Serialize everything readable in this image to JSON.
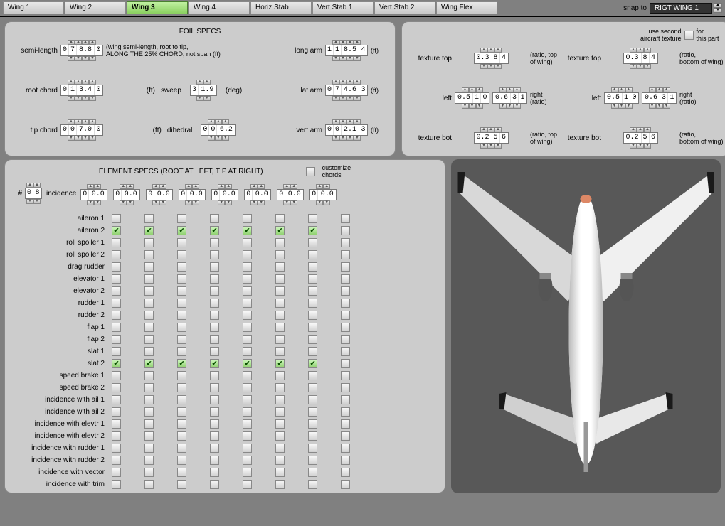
{
  "tabs": [
    "Wing 1",
    "Wing 2",
    "Wing 3",
    "Wing 4",
    "Horiz Stab",
    "Vert Stab 1",
    "Vert Stab 2",
    "Wing Flex"
  ],
  "active_tab": 2,
  "snap_label": "snap to",
  "snap_value": "RIGT WING 1",
  "foil_title": "FOIL SPECS",
  "foil": {
    "semi_length": {
      "label": "semi-length",
      "value": "0 7 8.8 0",
      "unit": "(wing semi-length, root to tip,\nALONG THE 25% CHORD, not span (ft)"
    },
    "root_chord": {
      "label": "root chord",
      "value": "0 1 3.4 0",
      "unit": "(ft)"
    },
    "tip_chord": {
      "label": "tip chord",
      "value": "0 0 7.0 0",
      "unit": "(ft)"
    },
    "sweep": {
      "label": "sweep",
      "value": "3 1.9",
      "unit": "(deg)"
    },
    "dihedral": {
      "label": "dihedral",
      "value": "0 0 6.2",
      "unit": ""
    },
    "long_arm": {
      "label": "long arm",
      "value": "1 1 8.5 4",
      "unit": "(ft)"
    },
    "lat_arm": {
      "label": "lat arm",
      "value": "0 7 4.6 3",
      "unit": "(ft)"
    },
    "vert_arm": {
      "label": "vert arm",
      "value": "0 0 2.1 3",
      "unit": "(ft)"
    }
  },
  "tex_header": {
    "use_second": "use second\naircraft texture",
    "for_part": "for\nthis part"
  },
  "tex": {
    "top_l": {
      "label": "texture top",
      "value": "0.3 8 4",
      "unit": "(ratio, top\nof wing)"
    },
    "top_r": {
      "label": "texture top",
      "value": "0.3 8 4",
      "unit": "(ratio,\nbottom of wing)"
    },
    "left_l": {
      "label": "left",
      "value": "0.5 1 0"
    },
    "right_l": {
      "label": "right\n(ratio)",
      "value": "0.6 3 1"
    },
    "left_r": {
      "label": "left",
      "value": "0.5 1 0"
    },
    "right_r": {
      "label": "right\n(ratio)",
      "value": "0.6 3 1"
    },
    "bot_l": {
      "label": "texture bot",
      "value": "0.2 5 6",
      "unit": "(ratio, top\nof wing)"
    },
    "bot_r": {
      "label": "texture bot",
      "value": "0.2 5 6",
      "unit": "(ratio,\nbottom of wing)"
    }
  },
  "elem_title": "ELEMENT SPECS  (ROOT AT LEFT, TIP AT RIGHT)",
  "customize": "customize\nchords",
  "count_label": "#",
  "count_value": "0 8",
  "incidence_label": "incidence",
  "incidence_values": [
    "0 0.0",
    "0 0.0",
    "0 0.0",
    "0 0.0",
    "0 0.0",
    "0 0.0",
    "0 0.0",
    "0 0.0"
  ],
  "elem_rows": [
    {
      "label": "aileron 1",
      "checks": [
        0,
        0,
        0,
        0,
        0,
        0,
        0,
        0
      ]
    },
    {
      "label": "aileron 2",
      "checks": [
        1,
        1,
        1,
        1,
        1,
        1,
        1,
        0
      ]
    },
    {
      "label": "roll spoiler 1",
      "checks": [
        0,
        0,
        0,
        0,
        0,
        0,
        0,
        0
      ]
    },
    {
      "label": "roll spoiler 2",
      "checks": [
        0,
        0,
        0,
        0,
        0,
        0,
        0,
        0
      ]
    },
    {
      "label": "drag rudder",
      "checks": [
        0,
        0,
        0,
        0,
        0,
        0,
        0,
        0
      ]
    },
    {
      "label": "elevator 1",
      "checks": [
        0,
        0,
        0,
        0,
        0,
        0,
        0,
        0
      ]
    },
    {
      "label": "elevator 2",
      "checks": [
        0,
        0,
        0,
        0,
        0,
        0,
        0,
        0
      ]
    },
    {
      "label": "rudder 1",
      "checks": [
        0,
        0,
        0,
        0,
        0,
        0,
        0,
        0
      ]
    },
    {
      "label": "rudder 2",
      "checks": [
        0,
        0,
        0,
        0,
        0,
        0,
        0,
        0
      ]
    },
    {
      "label": "flap 1",
      "checks": [
        0,
        0,
        0,
        0,
        0,
        0,
        0,
        0
      ]
    },
    {
      "label": "flap 2",
      "checks": [
        0,
        0,
        0,
        0,
        0,
        0,
        0,
        0
      ]
    },
    {
      "label": "slat 1",
      "checks": [
        0,
        0,
        0,
        0,
        0,
        0,
        0,
        0
      ]
    },
    {
      "label": "slat 2",
      "checks": [
        1,
        1,
        1,
        1,
        1,
        1,
        1,
        0
      ]
    },
    {
      "label": "speed brake 1",
      "checks": [
        0,
        0,
        0,
        0,
        0,
        0,
        0,
        0
      ]
    },
    {
      "label": "speed brake 2",
      "checks": [
        0,
        0,
        0,
        0,
        0,
        0,
        0,
        0
      ]
    },
    {
      "label": "incidence with ail 1",
      "checks": [
        0,
        0,
        0,
        0,
        0,
        0,
        0,
        0
      ]
    },
    {
      "label": "incidence with ail 2",
      "checks": [
        0,
        0,
        0,
        0,
        0,
        0,
        0,
        0
      ]
    },
    {
      "label": "incidence with elevtr 1",
      "checks": [
        0,
        0,
        0,
        0,
        0,
        0,
        0,
        0
      ]
    },
    {
      "label": "incidence with elevtr 2",
      "checks": [
        0,
        0,
        0,
        0,
        0,
        0,
        0,
        0
      ]
    },
    {
      "label": "incidence with rudder 1",
      "checks": [
        0,
        0,
        0,
        0,
        0,
        0,
        0,
        0
      ]
    },
    {
      "label": "incidence with rudder 2",
      "checks": [
        0,
        0,
        0,
        0,
        0,
        0,
        0,
        0
      ]
    },
    {
      "label": "incidence with vector",
      "checks": [
        0,
        0,
        0,
        0,
        0,
        0,
        0,
        0
      ]
    },
    {
      "label": "incidence with trim",
      "checks": [
        0,
        0,
        0,
        0,
        0,
        0,
        0,
        0
      ]
    }
  ],
  "colors": {
    "panel": "#cccccc",
    "bg": "#808080",
    "viewer": "#585858",
    "tab_active": "#9bd878",
    "checked": "#90d070",
    "plane_body": "#f5f5f5",
    "plane_dark": "#1a1a1a",
    "plane_shadow": "#bdbdbd",
    "engine": "#666666"
  }
}
